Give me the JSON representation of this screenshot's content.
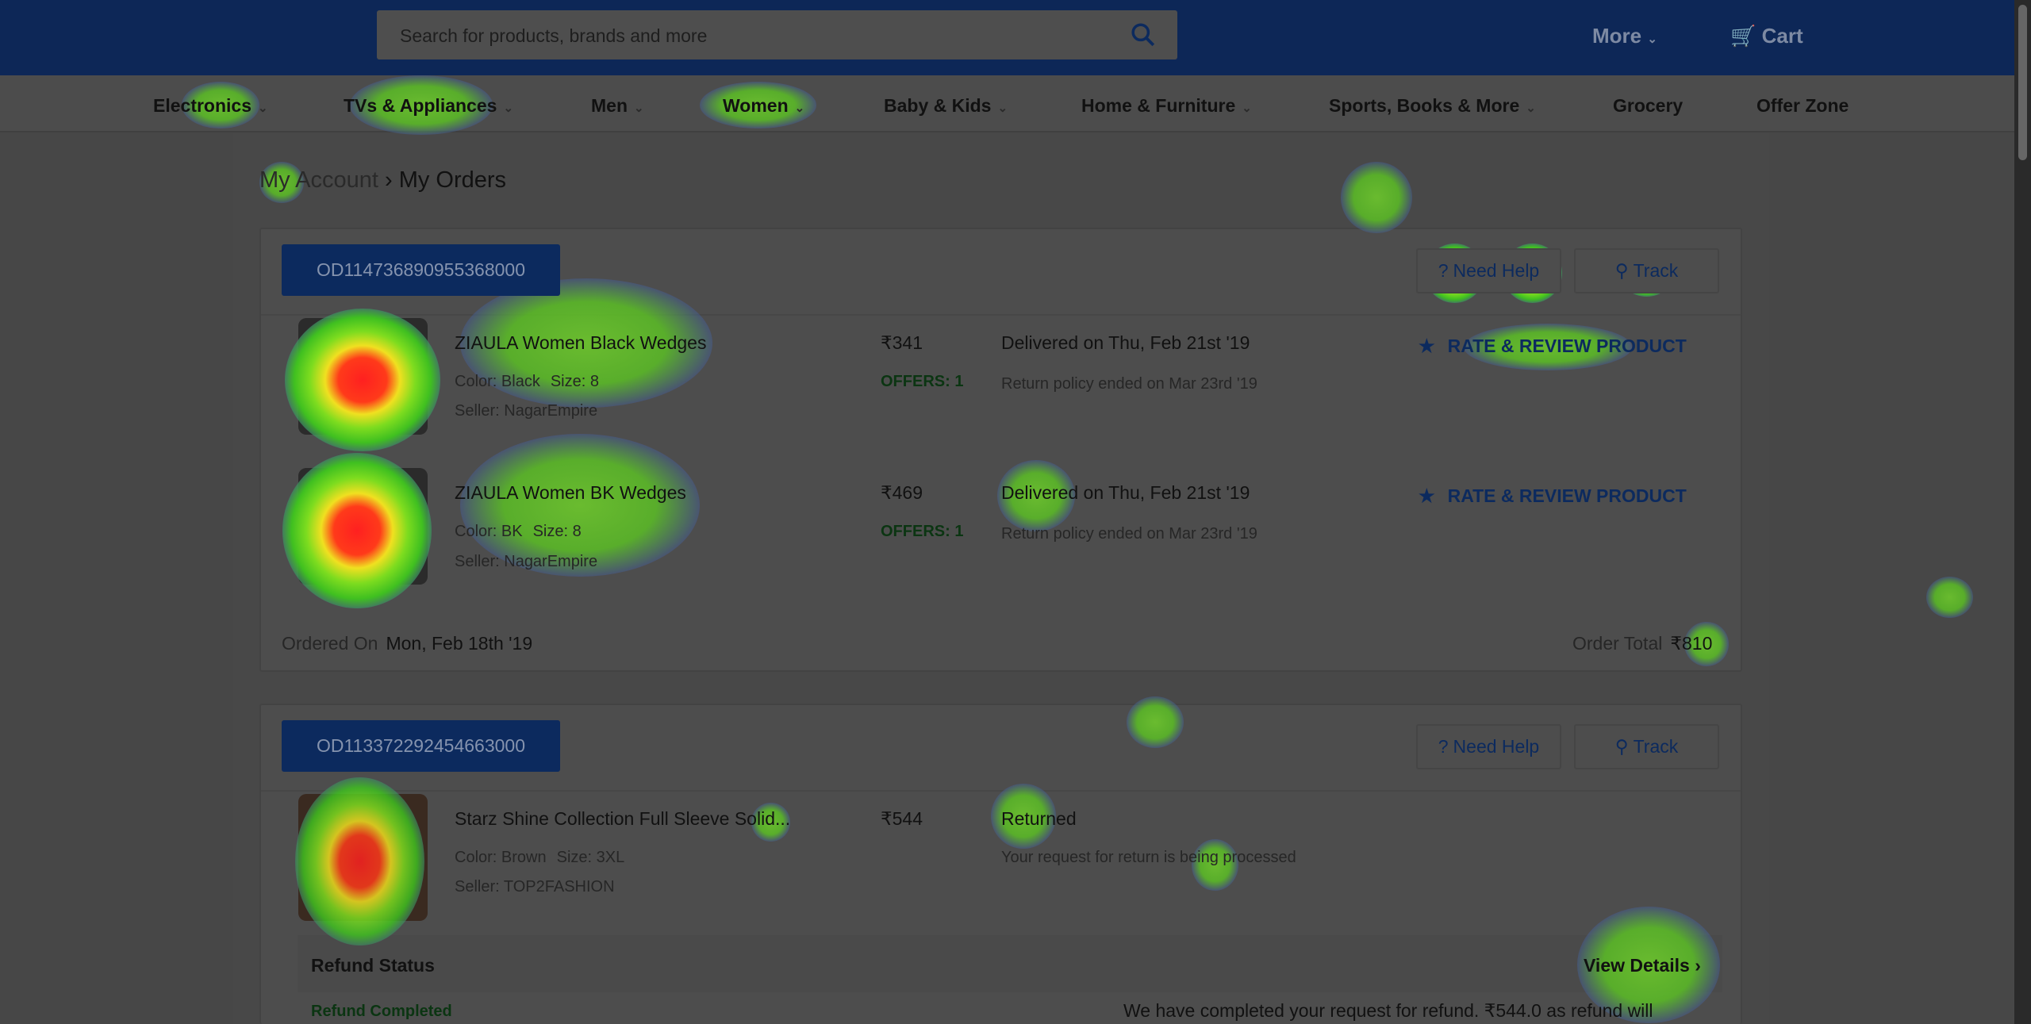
{
  "header": {
    "search_placeholder": "Search for products, brands and more",
    "more": "More",
    "cart": "Cart"
  },
  "nav": [
    "Electronics",
    "TVs & Appliances",
    "Men",
    "Women",
    "Baby & Kids",
    "Home & Furniture",
    "Sports, Books & More",
    "Grocery",
    "Offer Zone"
  ],
  "breadcrumb": {
    "parent": "My Account",
    "separator": "›",
    "current": "My Orders"
  },
  "orders": [
    {
      "id": "OD114736890955368000",
      "need_help": "Need Help",
      "track": "Track",
      "items": [
        {
          "name": "ZIAULA Women Black Wedges",
          "color": "Color: Black",
          "size": "Size: 8",
          "seller": "Seller: NagarEmpire",
          "price": "₹341",
          "offers": "OFFERS: 1",
          "status": "Delivered on Thu, Feb 21st '19",
          "sub": "Return policy ended on Mar 23rd '19",
          "action": "RATE & REVIEW PRODUCT"
        },
        {
          "name": "ZIAULA Women BK Wedges",
          "color": "Color: BK",
          "size": "Size: 8",
          "seller": "Seller: NagarEmpire",
          "price": "₹469",
          "offers": "OFFERS: 1",
          "status": "Delivered on Thu, Feb 21st '19",
          "sub": "Return policy ended on Mar 23rd '19",
          "action": "RATE & REVIEW PRODUCT"
        }
      ],
      "ordered_on_label": "Ordered On",
      "ordered_on": "Mon, Feb 18th '19",
      "total_label": "Order Total",
      "total": "₹810"
    },
    {
      "id": "OD113372292454663000",
      "need_help": "Need Help",
      "track": "Track",
      "items": [
        {
          "name": "Starz Shine Collection Full Sleeve Solid...",
          "color": "Color: Brown",
          "size": "Size: 3XL",
          "seller": "Seller: TOP2FASHION",
          "price": "₹544",
          "status": "Returned",
          "sub": "Your request for return is being processed"
        }
      ],
      "refund": {
        "title": "Refund Status",
        "view": "View Details ›",
        "state": "Refund Completed",
        "message": "We have completed your request for refund. ₹544.0 as refund will"
      }
    }
  ],
  "colors": {
    "brand": "#2874f0",
    "offer": "#26a541"
  }
}
